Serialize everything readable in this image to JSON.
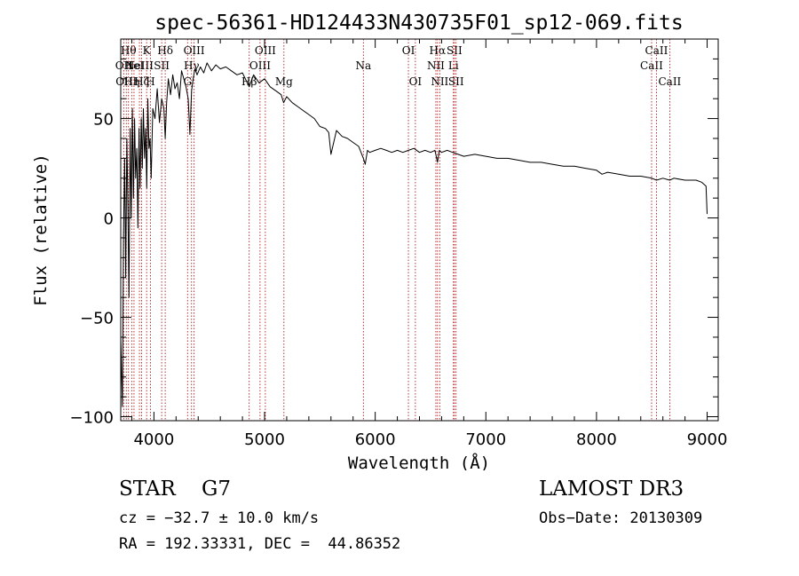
{
  "chart_data": {
    "type": "line",
    "title": "spec-56361-HD124433N430735F01_sp12-069.fits",
    "xlabel": "Wavelength (Å)",
    "ylabel": "Flux (relative)",
    "xlim": [
      3700,
      9100
    ],
    "ylim": [
      -102,
      90
    ],
    "xticks": [
      4000,
      5000,
      6000,
      7000,
      8000,
      9000
    ],
    "xtick_labels": [
      "4000",
      "5000",
      "6000",
      "7000",
      "8000",
      "9000"
    ],
    "yticks": [
      -100,
      -50,
      0,
      50
    ],
    "ytick_labels": [
      "−100",
      "−50",
      "0",
      "50"
    ],
    "series": [
      {
        "name": "spectrum",
        "color": "#000000",
        "x": [
          3700,
          3715,
          3725,
          3735,
          3745,
          3755,
          3765,
          3775,
          3785,
          3795,
          3805,
          3815,
          3825,
          3835,
          3845,
          3855,
          3865,
          3875,
          3885,
          3895,
          3905,
          3915,
          3925,
          3935,
          3945,
          3955,
          3965,
          3975,
          3990,
          4010,
          4030,
          4050,
          4070,
          4090,
          4102,
          4115,
          4130,
          4150,
          4170,
          4190,
          4210,
          4230,
          4250,
          4270,
          4290,
          4310,
          4325,
          4340,
          4355,
          4370,
          4390,
          4420,
          4450,
          4480,
          4520,
          4560,
          4600,
          4650,
          4700,
          4750,
          4800,
          4861,
          4900,
          4950,
          5000,
          5050,
          5100,
          5150,
          5172,
          5200,
          5250,
          5300,
          5350,
          5400,
          5450,
          5500,
          5550,
          5580,
          5600,
          5650,
          5700,
          5750,
          5800,
          5850,
          5893,
          5910,
          5930,
          5950,
          6000,
          6050,
          6100,
          6150,
          6200,
          6250,
          6300,
          6350,
          6400,
          6450,
          6500,
          6540,
          6563,
          6580,
          6600,
          6650,
          6700,
          6750,
          6800,
          6900,
          7000,
          7100,
          7200,
          7300,
          7400,
          7500,
          7600,
          7700,
          7800,
          7900,
          8000,
          8050,
          8100,
          8200,
          8300,
          8400,
          8500,
          8542,
          8600,
          8662,
          8700,
          8800,
          8900,
          8950,
          8990,
          9000
        ],
        "y": [
          -60,
          -95,
          -10,
          30,
          -30,
          40,
          5,
          -40,
          45,
          0,
          55,
          10,
          50,
          20,
          35,
          -5,
          45,
          15,
          50,
          25,
          55,
          30,
          45,
          15,
          60,
          35,
          40,
          20,
          55,
          50,
          65,
          48,
          60,
          55,
          40,
          58,
          70,
          62,
          72,
          65,
          68,
          60,
          74,
          70,
          66,
          60,
          42,
          64,
          70,
          75,
          72,
          76,
          73,
          78,
          74,
          77,
          75,
          76,
          74,
          72,
          73,
          66,
          72,
          68,
          70,
          66,
          64,
          62,
          58,
          61,
          58,
          56,
          54,
          52,
          50,
          46,
          45,
          43,
          32,
          44,
          41,
          40,
          38,
          36,
          30,
          27,
          34,
          33,
          34,
          35,
          34,
          33,
          34,
          33,
          34,
          35,
          33,
          34,
          33,
          34,
          28,
          34,
          33,
          34,
          33,
          32,
          31,
          32,
          31,
          30,
          30,
          29,
          28,
          28,
          27,
          26,
          26,
          25,
          24,
          22,
          23,
          22,
          21,
          21,
          20,
          19,
          20,
          19,
          20,
          19,
          19,
          18,
          16,
          2
        ]
      }
    ],
    "spectral_lines": [
      {
        "wavelength": 3727,
        "label": "OII",
        "row": 2
      },
      {
        "wavelength": 3750,
        "label": "OIII",
        "row": 3
      },
      {
        "wavelength": 3770,
        "label": "Hθ",
        "row": 1
      },
      {
        "wavelength": 3799,
        "label": "Hη",
        "row": 3
      },
      {
        "wavelength": 3820,
        "label": "HeI",
        "row": 2
      },
      {
        "wavelength": 3869,
        "label": "NeIII",
        "row": 2
      },
      {
        "wavelength": 3889,
        "label": "Hζ",
        "row": 3
      },
      {
        "wavelength": 3934,
        "label": "K",
        "row": 1
      },
      {
        "wavelength": 3969,
        "label": "H",
        "row": 3
      },
      {
        "wavelength": 4070,
        "label": "SII",
        "row": 2
      },
      {
        "wavelength": 4102,
        "label": "Hδ",
        "row": 1
      },
      {
        "wavelength": 4304,
        "label": "G",
        "row": 3
      },
      {
        "wavelength": 4340,
        "label": "Hγ",
        "row": 2
      },
      {
        "wavelength": 4363,
        "label": "OIII",
        "row": 1
      },
      {
        "wavelength": 4861,
        "label": "Hβ",
        "row": 3
      },
      {
        "wavelength": 4959,
        "label": "OIII",
        "row": 2
      },
      {
        "wavelength": 5007,
        "label": "OIII",
        "row": 1
      },
      {
        "wavelength": 5175,
        "label": "Mg",
        "row": 3
      },
      {
        "wavelength": 5893,
        "label": "Na",
        "row": 2
      },
      {
        "wavelength": 6300,
        "label": "OI",
        "row": 1
      },
      {
        "wavelength": 6363,
        "label": "OI",
        "row": 3
      },
      {
        "wavelength": 6548,
        "label": "NII",
        "row": 2
      },
      {
        "wavelength": 6563,
        "label": "Hα",
        "row": 1
      },
      {
        "wavelength": 6583,
        "label": "NII",
        "row": 3
      },
      {
        "wavelength": 6707,
        "label": "Li",
        "row": 2
      },
      {
        "wavelength": 6716,
        "label": "SII",
        "row": 1
      },
      {
        "wavelength": 6731,
        "label": "SII",
        "row": 3
      },
      {
        "wavelength": 8498,
        "label": "CaII",
        "row": 2
      },
      {
        "wavelength": 8542,
        "label": "CaII",
        "row": 1
      },
      {
        "wavelength": 8662,
        "label": "CaII",
        "row": 3
      }
    ],
    "colors": {
      "line_markers": "#aa0000",
      "spectrum": "#000000",
      "axes": "#000000"
    }
  },
  "info": {
    "object_class": "STAR    G7",
    "survey": "LAMOST DR3",
    "redshift": "cz = −32.7 ± 10.0 km/s",
    "obs_date": "Obs−Date: 20130309",
    "coordinates": "RA = 192.33331, DEC =  44.86352"
  }
}
